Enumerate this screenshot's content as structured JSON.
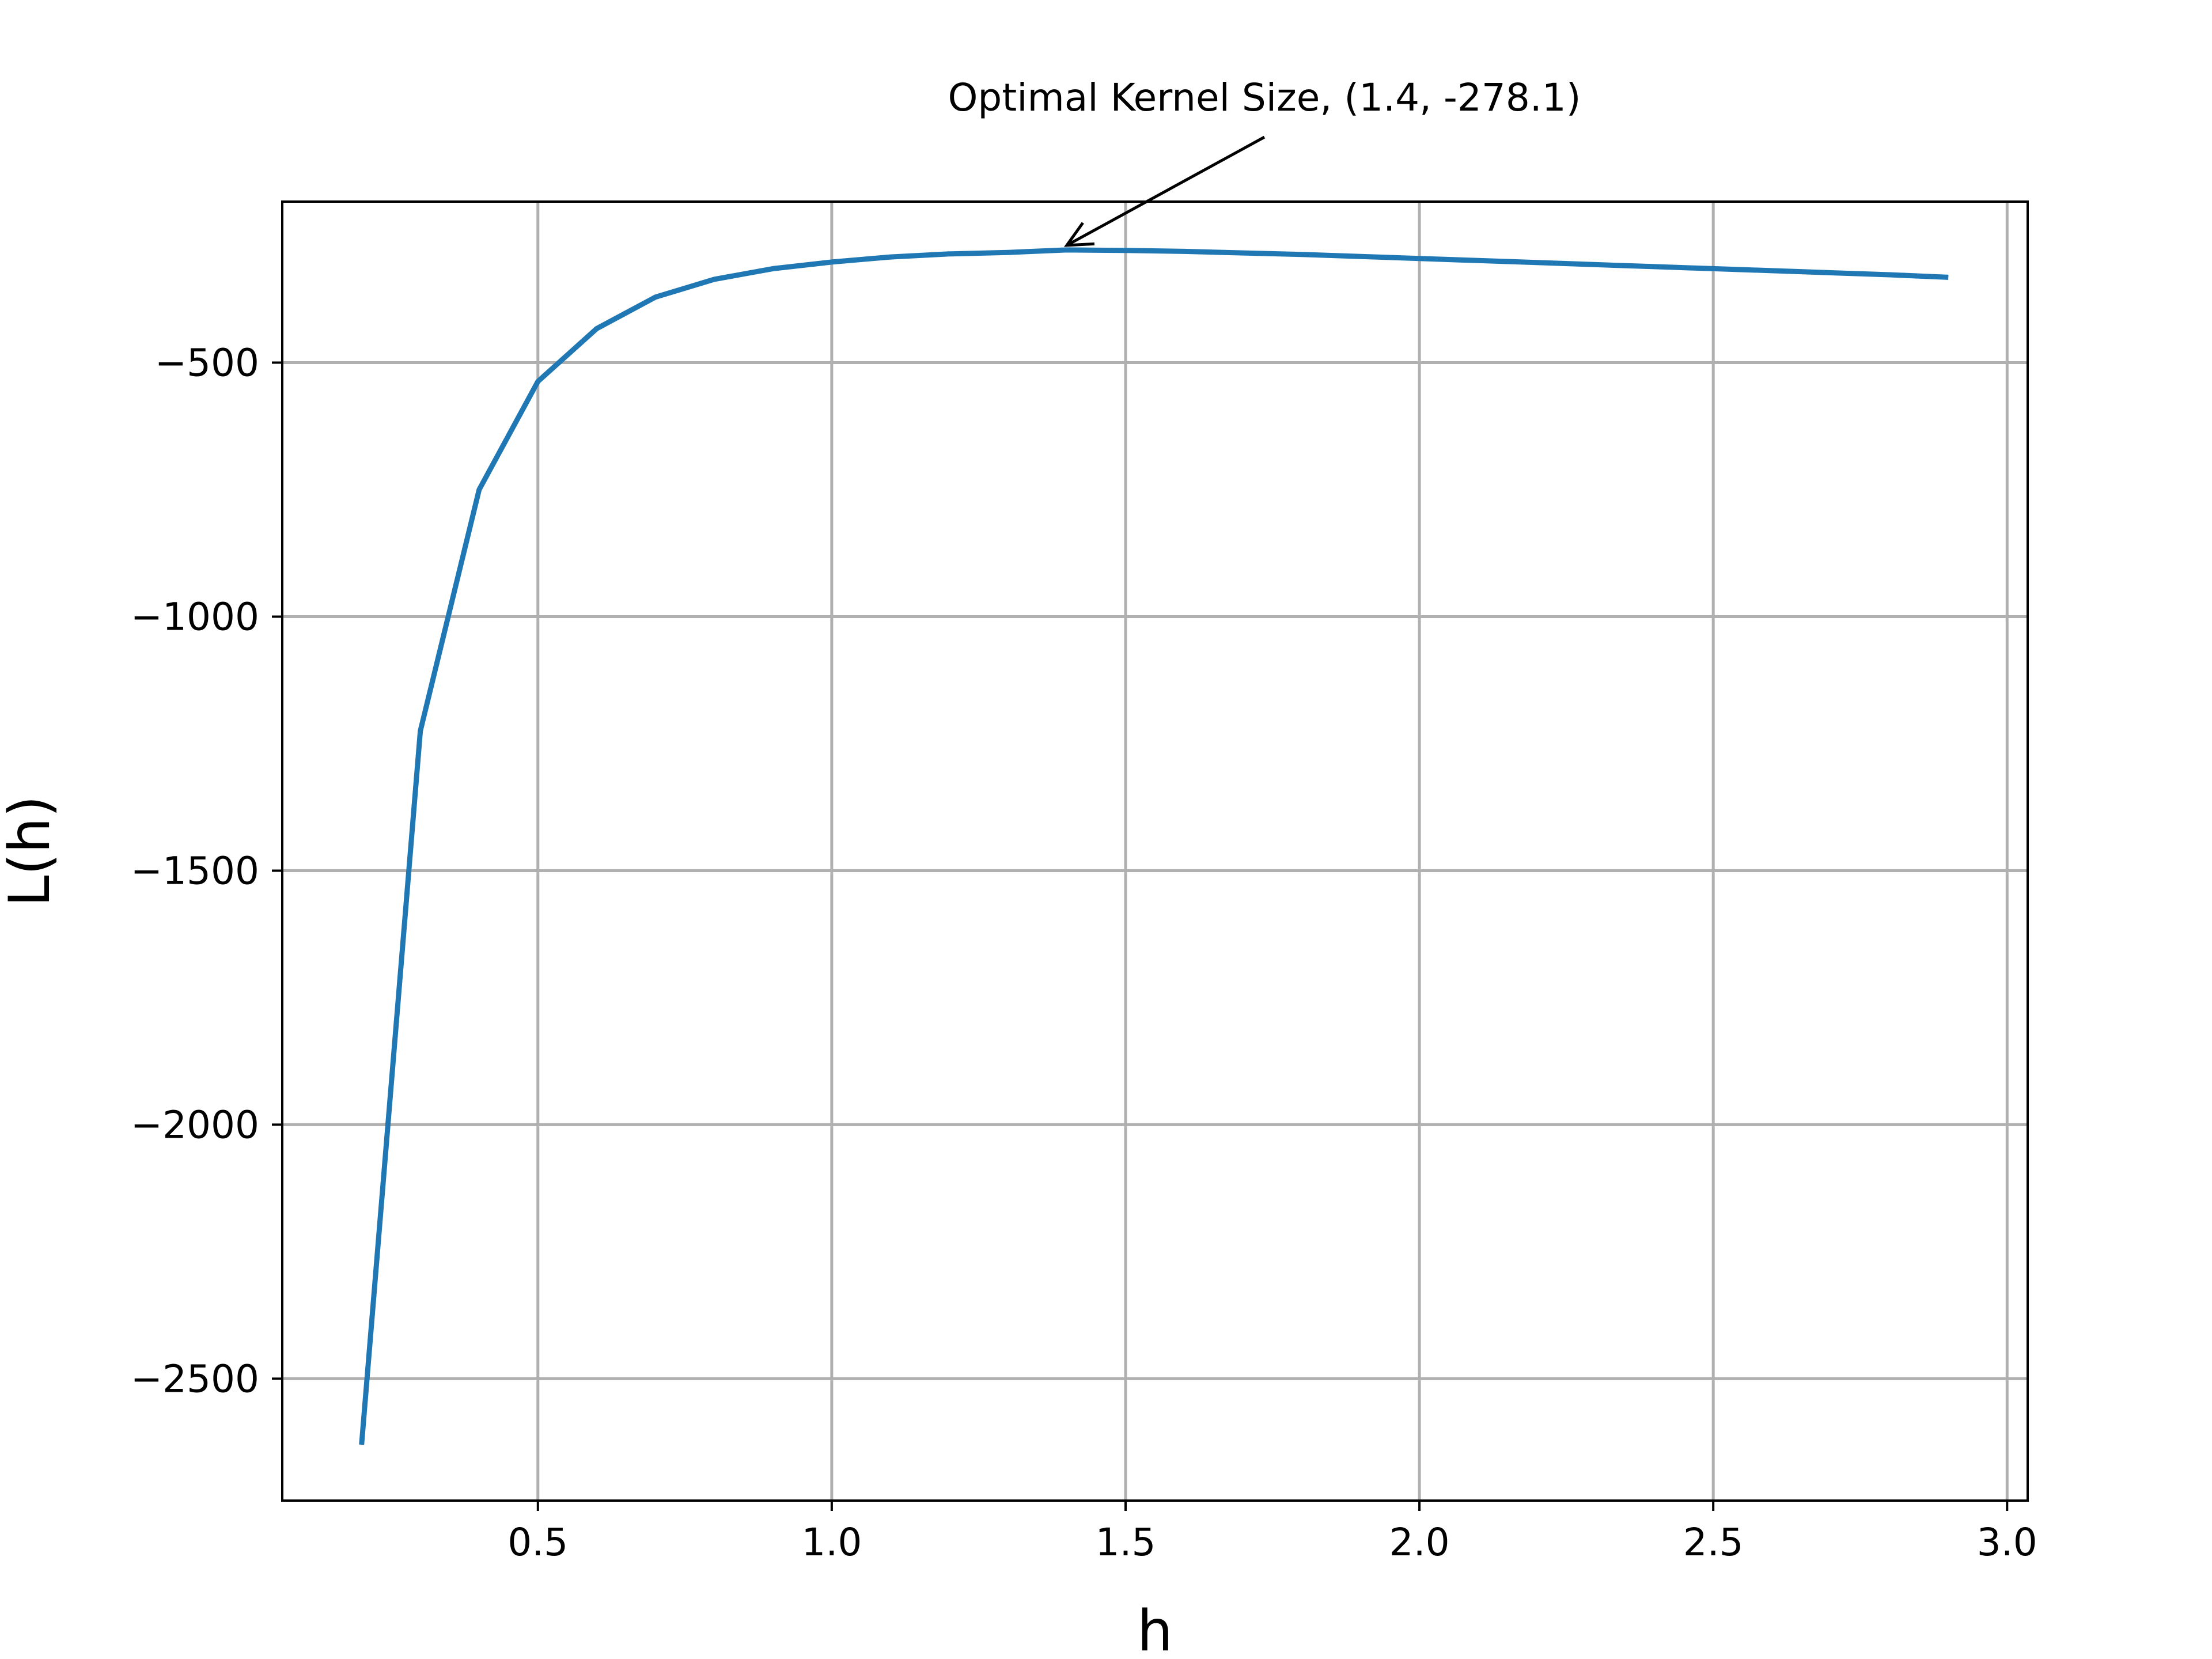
{
  "chart_data": {
    "type": "line",
    "title": "",
    "xlabel": "h",
    "ylabel": "L(h)",
    "xlim": [
      0.065,
      3.035
    ],
    "ylim": [
      -2740,
      -183
    ],
    "grid": true,
    "xticks": [
      0.5,
      1.0,
      1.5,
      2.0,
      2.5,
      3.0
    ],
    "xtick_labels": [
      "0.5",
      "1.0",
      "1.5",
      "2.0",
      "2.5",
      "3.0"
    ],
    "yticks": [
      -500,
      -1000,
      -1500,
      -2000,
      -2500
    ],
    "ytick_labels": [
      "−500",
      "−1000",
      "−1500",
      "−2000",
      "−2500"
    ],
    "series": [
      {
        "color": "#1f77b4",
        "x": [
          0.2,
          0.3,
          0.4,
          0.5,
          0.6,
          0.7,
          0.8,
          0.9,
          1.0,
          1.1,
          1.2,
          1.3,
          1.4,
          1.5,
          1.6,
          1.7,
          1.8,
          1.9,
          2.0,
          2.1,
          2.2,
          2.3,
          2.4,
          2.5,
          2.6,
          2.7,
          2.8,
          2.9
        ],
        "y": [
          -2630,
          -1225,
          -750,
          -537,
          -433,
          -371,
          -336,
          -315,
          -302,
          -292,
          -286,
          -283,
          -278.1,
          -279,
          -281,
          -284,
          -287,
          -291,
          -295,
          -299,
          -303,
          -307,
          -311,
          -315,
          -319,
          -323,
          -327,
          -332
        ]
      }
    ],
    "annotations": [
      {
        "text": "Optimal Kernel Size, (1.4, -278.1)",
        "x": 1.4,
        "y": -278.1
      }
    ]
  }
}
